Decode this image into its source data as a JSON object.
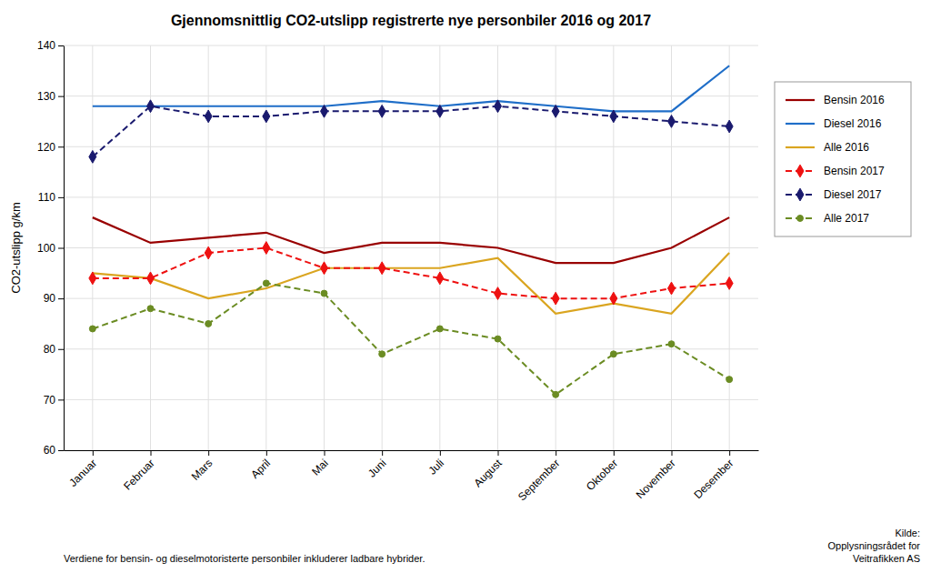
{
  "chart_data": {
    "type": "line",
    "title": "Gjennomsnittlig CO2-utslipp registrerte nye personbiler 2016 og 2017",
    "ylabel": "CO2-utslipp g/km",
    "footnote": "Verdiene for bensin- og dieselmotoristerte personbiler inkluderer ladbare hybrider.",
    "source": [
      "Kilde:",
      "Opplysningsrådet for",
      "Veitrafikken AS"
    ],
    "categories": [
      "Januar",
      "Februar",
      "Mars",
      "April",
      "Mai",
      "Juni",
      "Juli",
      "August",
      "September",
      "Oktober",
      "November",
      "Desember"
    ],
    "series": [
      {
        "name": "Bensin 2016",
        "color": "#990000",
        "line_style": "solid",
        "values": [
          106,
          101,
          102,
          103,
          99,
          101,
          101,
          100,
          97,
          97,
          100,
          106
        ]
      },
      {
        "name": "Diesel 2016",
        "color": "#1F6EC8",
        "line_style": "solid",
        "values": [
          128,
          128,
          128,
          128,
          128,
          129,
          128,
          129,
          128,
          127,
          127,
          136
        ]
      },
      {
        "name": "Alle 2016",
        "color": "#DAA520",
        "line_style": "solid",
        "values": [
          95,
          94,
          90,
          92,
          96,
          96,
          96,
          98,
          87,
          89,
          87,
          99
        ]
      },
      {
        "name": "Bensin 2017",
        "color": "#EE1111",
        "line_style": "dashed",
        "marker": "diamond",
        "values": [
          94,
          94,
          99,
          100,
          96,
          96,
          94,
          91,
          90,
          90,
          92,
          93
        ]
      },
      {
        "name": "Diesel 2017",
        "color": "#1A1A6E",
        "line_style": "dashed",
        "marker": "diamond",
        "values": [
          118,
          128,
          126,
          126,
          127,
          127,
          127,
          128,
          127,
          126,
          125,
          124
        ]
      },
      {
        "name": "Alle 2017",
        "color": "#6B8C23",
        "line_style": "dashed",
        "marker": "circle",
        "values": [
          84,
          88,
          85,
          93,
          91,
          79,
          84,
          82,
          71,
          79,
          81,
          74
        ]
      }
    ],
    "ylim": [
      60,
      140
    ],
    "yticks": [
      60,
      70,
      80,
      90,
      100,
      110,
      120,
      130,
      140
    ],
    "grid": true,
    "legend": "right"
  }
}
